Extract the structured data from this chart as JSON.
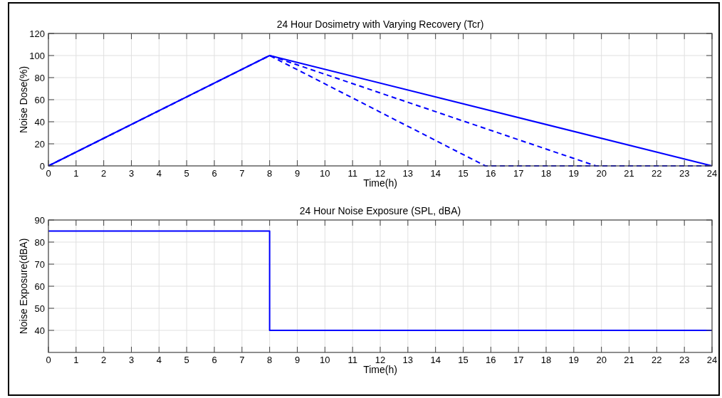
{
  "chart_data": [
    {
      "type": "line",
      "title": "24 Hour Dosimetry with Varying Recovery (Tcr)",
      "xlabel": "Time(h)",
      "ylabel": "Noise Dose(%)",
      "xlim": [
        0,
        24
      ],
      "xticks": [
        0,
        1,
        2,
        3,
        4,
        5,
        6,
        7,
        8,
        9,
        10,
        11,
        12,
        13,
        14,
        15,
        16,
        17,
        18,
        19,
        20,
        21,
        22,
        23,
        24
      ],
      "ylim": [
        0,
        120
      ],
      "yticks": [
        0,
        20,
        40,
        60,
        80,
        100,
        120
      ],
      "grid": true,
      "marker": "none",
      "series": [
        {
          "color": "#0000ff",
          "line_style": "solid",
          "x": [
            0,
            8,
            24
          ],
          "values": [
            0,
            100,
            0
          ]
        },
        {
          "color": "#0000ff",
          "line_style": "dashed",
          "x": [
            0,
            8,
            19.8,
            24
          ],
          "values": [
            0,
            100,
            0,
            0
          ]
        },
        {
          "color": "#0000ff",
          "line_style": "dashed",
          "x": [
            0,
            8,
            15.8,
            24
          ],
          "values": [
            0,
            100,
            0,
            0
          ]
        }
      ]
    },
    {
      "type": "line",
      "title": "24 Hour Noise Exposure (SPL, dBA)",
      "xlabel": "Time(h)",
      "ylabel": "Noise Exposure(dBA)",
      "xlim": [
        0,
        24
      ],
      "xticks": [
        0,
        1,
        2,
        3,
        4,
        5,
        6,
        7,
        8,
        9,
        10,
        11,
        12,
        13,
        14,
        15,
        16,
        17,
        18,
        19,
        20,
        21,
        22,
        23,
        24
      ],
      "ylim": [
        30,
        90
      ],
      "yticks": [
        40,
        50,
        60,
        70,
        80,
        90
      ],
      "grid": true,
      "marker": "none",
      "series": [
        {
          "color": "#0000ff",
          "line_style": "solid",
          "x": [
            0,
            8,
            8,
            24
          ],
          "values": [
            85,
            85,
            40,
            40
          ]
        }
      ]
    }
  ]
}
